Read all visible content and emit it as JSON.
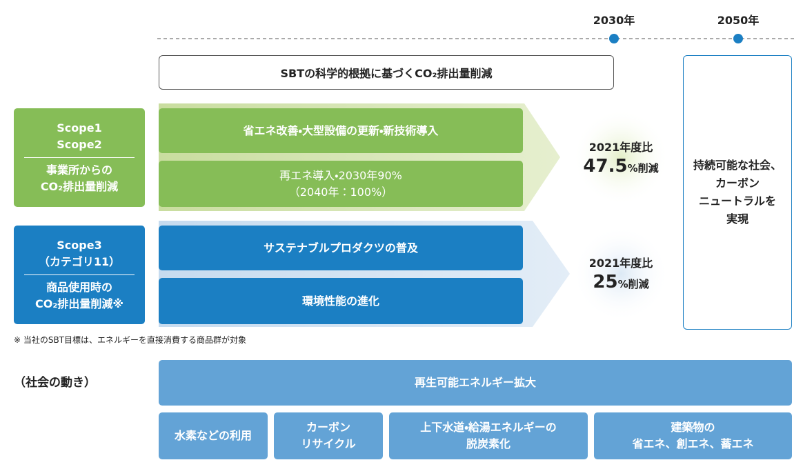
{
  "timeline": {
    "years": [
      "2030年",
      "2050年"
    ]
  },
  "sbt_banner": "SBTの科学的根拠に基づくCO₂排出量削減",
  "scope12": {
    "title": [
      "Scope1",
      "Scope2"
    ],
    "description": [
      "事業所からの",
      "CO₂排出量削減"
    ],
    "actions": [
      [
        "省エネ改善・大型設備の更新・新技術導入"
      ],
      [
        "再エネ導入・2030年90%",
        "（2040年：100%）"
      ]
    ],
    "target": {
      "label": "2021年度比",
      "value": "47.5",
      "unit": "%削減"
    }
  },
  "scope3": {
    "title": [
      "Scope3",
      "（カテゴリ11）"
    ],
    "description": [
      "商品使用時の",
      "CO₂排出量削減※"
    ],
    "actions": [
      [
        "サステナブルプロダクツの普及"
      ],
      [
        "環境性能の進化"
      ]
    ],
    "target": {
      "label": "2021年度比",
      "value": "25",
      "unit": "%削減"
    }
  },
  "goal": [
    "持続可能な社会、",
    "カーボン",
    "ニュートラルを",
    "実現"
  ],
  "footnote": "※ 当社のSBT目標は、エネルギーを直接消費する商品群が対象",
  "society": {
    "label": "（社会の動き）",
    "main": "再生可能エネルギー拡大",
    "items": [
      [
        "水素などの利用"
      ],
      [
        "カーボン",
        "リサイクル"
      ],
      [
        "上下水道・給湯エネルギーの",
        "脱炭素化"
      ],
      [
        "建築物の",
        "省エネ、創エネ、蓄エネ"
      ]
    ]
  }
}
